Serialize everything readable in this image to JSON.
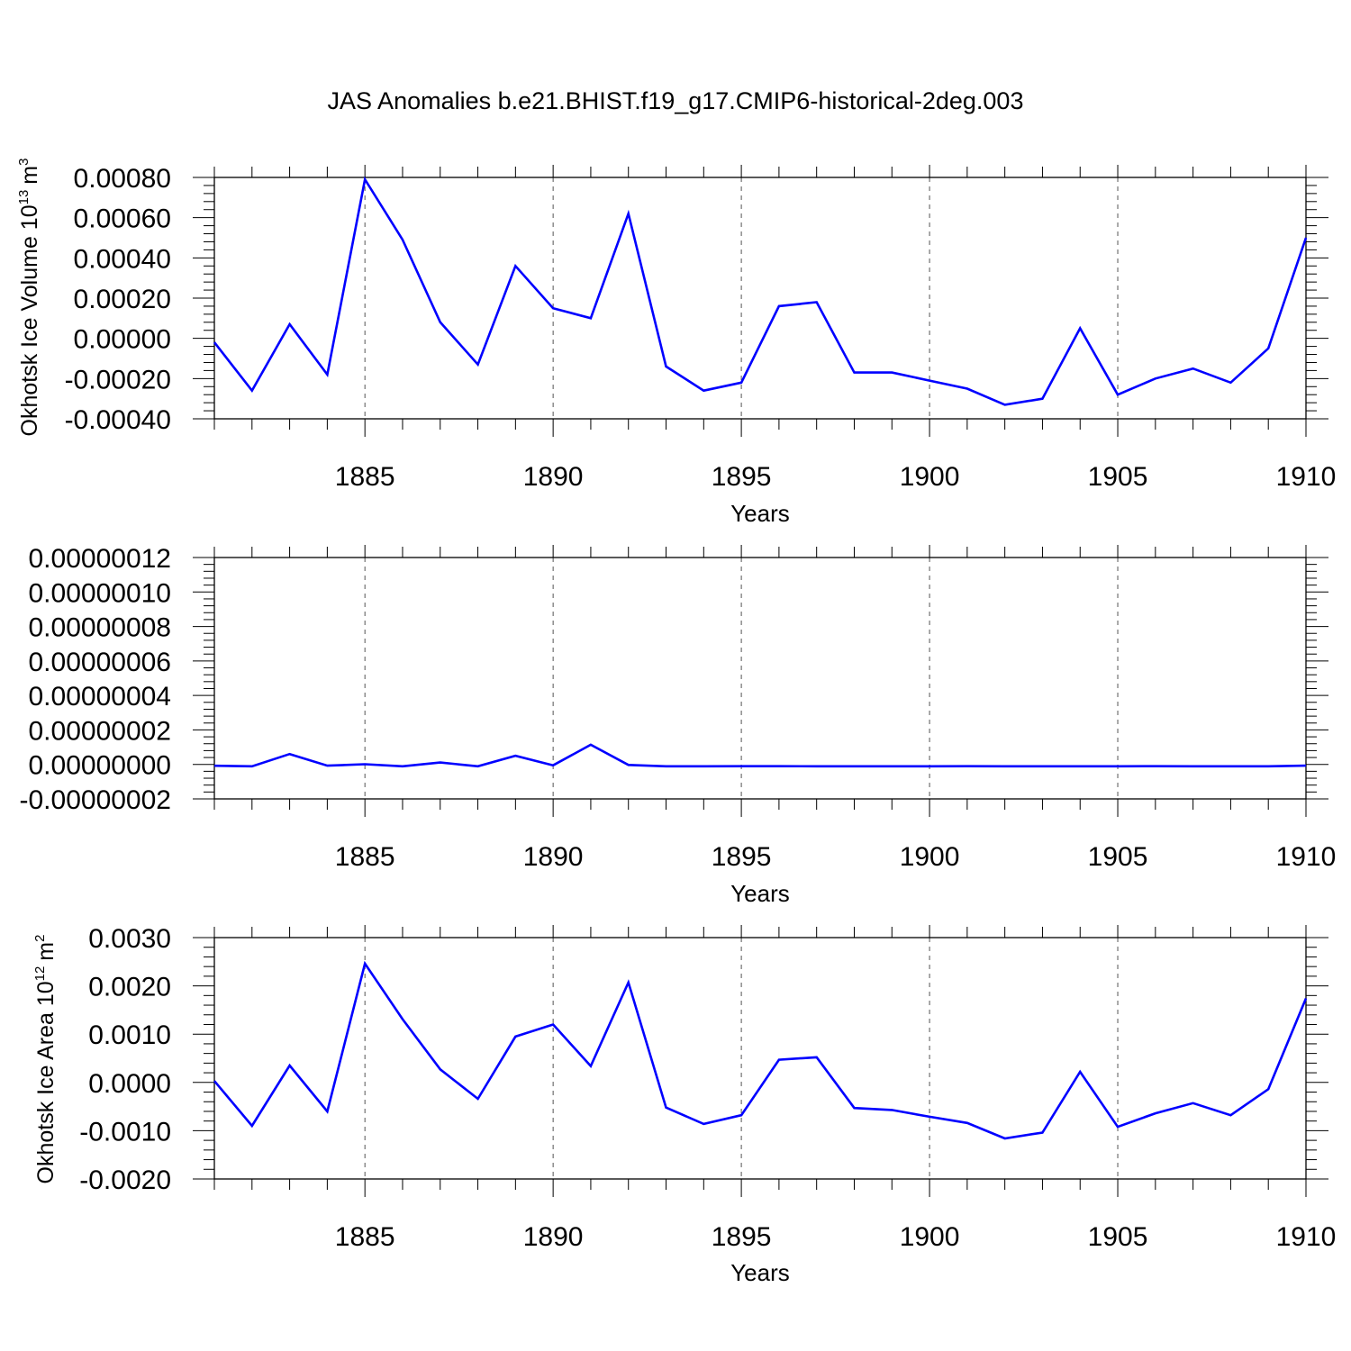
{
  "title": "JAS Anomalies b.e21.BHIST.f19_g17.CMIP6-historical-2deg.003",
  "colors": {
    "series": "#0000ff",
    "axis": "#000000",
    "grid": "#555555"
  },
  "chart_data": [
    {
      "type": "line",
      "ylabel_main": "Okhotsk Ice Volume 10",
      "ylabel_exp": "13",
      "ylabel_unit": "m",
      "ylabel_unit_exp": "3",
      "xlabel": "Years",
      "xlim": [
        1881,
        1910
      ],
      "ylim": [
        -0.0004,
        0.0008
      ],
      "x_ticks": [
        1885,
        1890,
        1895,
        1900,
        1905,
        1910
      ],
      "x_tick_labels": [
        "1885",
        "1890",
        "1895",
        "1900",
        "1905",
        "1910"
      ],
      "y_ticks": [
        -0.0004,
        -0.0002,
        0.0,
        0.0002,
        0.0004,
        0.0006,
        0.0008
      ],
      "y_tick_labels": [
        "-0.00040",
        "-0.00020",
        "0.00000",
        "0.00020",
        "0.00040",
        "0.00060",
        "0.00080"
      ],
      "x": [
        1881,
        1882,
        1883,
        1884,
        1885,
        1886,
        1887,
        1888,
        1889,
        1890,
        1891,
        1892,
        1893,
        1894,
        1895,
        1896,
        1897,
        1898,
        1899,
        1900,
        1901,
        1902,
        1903,
        1904,
        1905,
        1906,
        1907,
        1908,
        1909,
        1910
      ],
      "values": [
        -2e-05,
        -0.00026,
        7e-05,
        -0.00018,
        0.00079,
        0.00049,
        8e-05,
        -0.00013,
        0.00036,
        0.00015,
        0.0001,
        0.00062,
        -0.00014,
        -0.00026,
        -0.00022,
        0.00016,
        0.00018,
        -0.00017,
        -0.00017,
        -0.00021,
        -0.00025,
        -0.00033,
        -0.0003,
        5e-05,
        -0.00028,
        -0.0002,
        -0.00015,
        -0.00022,
        -5e-05,
        0.0005
      ]
    },
    {
      "type": "line",
      "xlabel": "Years",
      "xlim": [
        1881,
        1910
      ],
      "ylim": [
        -2e-08,
        1.2e-07
      ],
      "x_ticks": [
        1885,
        1890,
        1895,
        1900,
        1905,
        1910
      ],
      "x_tick_labels": [
        "1885",
        "1890",
        "1895",
        "1900",
        "1905",
        "1910"
      ],
      "y_ticks": [
        -2e-08,
        0.0,
        2e-08,
        4e-08,
        6e-08,
        8e-08,
        1e-07,
        1.2e-07
      ],
      "y_tick_labels": [
        "-0.00000002",
        "0.00000000",
        "0.00000002",
        "0.00000004",
        "0.00000006",
        "0.00000008",
        "0.00000010",
        "0.00000012"
      ],
      "x": [
        1881,
        1882,
        1883,
        1884,
        1885,
        1886,
        1887,
        1888,
        1889,
        1890,
        1891,
        1892,
        1893,
        1894,
        1895,
        1896,
        1897,
        1898,
        1899,
        1900,
        1901,
        1902,
        1903,
        1904,
        1905,
        1906,
        1907,
        1908,
        1909,
        1910
      ],
      "values": [
        -8e-10,
        -1.1e-09,
        6e-09,
        -7e-10,
        1e-10,
        -1.1e-09,
        1.1e-09,
        -1.1e-09,
        5e-09,
        -5e-10,
        1.14e-08,
        -3e-10,
        -1.1e-09,
        -1.1e-09,
        -1.04e-09,
        -1.06e-09,
        -1.08e-09,
        -1.1e-09,
        -1.1e-09,
        -1.1e-09,
        -1.03e-09,
        -1.1e-09,
        -1.1e-09,
        -1.1e-09,
        -1.1e-09,
        -1.03e-09,
        -1.1e-09,
        -1.1e-09,
        -1.1e-09,
        -7e-10
      ]
    },
    {
      "type": "line",
      "ylabel_main": "Okhotsk Ice Area 10",
      "ylabel_exp": "12",
      "ylabel_unit": "m",
      "ylabel_unit_exp": "2",
      "xlabel": "Years",
      "xlim": [
        1881,
        1910
      ],
      "ylim": [
        -0.002,
        0.003
      ],
      "x_ticks": [
        1885,
        1890,
        1895,
        1900,
        1905,
        1910
      ],
      "x_tick_labels": [
        "1885",
        "1890",
        "1895",
        "1900",
        "1905",
        "1910"
      ],
      "y_ticks": [
        -0.002,
        -0.001,
        0.0,
        0.001,
        0.002,
        0.003
      ],
      "y_tick_labels": [
        "-0.0020",
        "-0.0010",
        "0.0000",
        "0.0010",
        "0.0020",
        "0.0030"
      ],
      "x": [
        1881,
        1882,
        1883,
        1884,
        1885,
        1886,
        1887,
        1888,
        1889,
        1890,
        1891,
        1892,
        1893,
        1894,
        1895,
        1896,
        1897,
        1898,
        1899,
        1900,
        1901,
        1902,
        1903,
        1904,
        1905,
        1906,
        1907,
        1908,
        1909,
        1910
      ],
      "values": [
        3e-05,
        -0.0009,
        0.00035,
        -0.0006,
        0.00246,
        0.00131,
        0.00027,
        -0.00034,
        0.00095,
        0.0012,
        0.00034,
        0.00207,
        -0.00052,
        -0.00086,
        -0.00068,
        0.00047,
        0.00052,
        -0.00053,
        -0.00057,
        -0.00071,
        -0.00084,
        -0.00116,
        -0.00104,
        0.00022,
        -0.00092,
        -0.00064,
        -0.00043,
        -0.00068,
        -0.00014,
        0.00174
      ]
    }
  ]
}
